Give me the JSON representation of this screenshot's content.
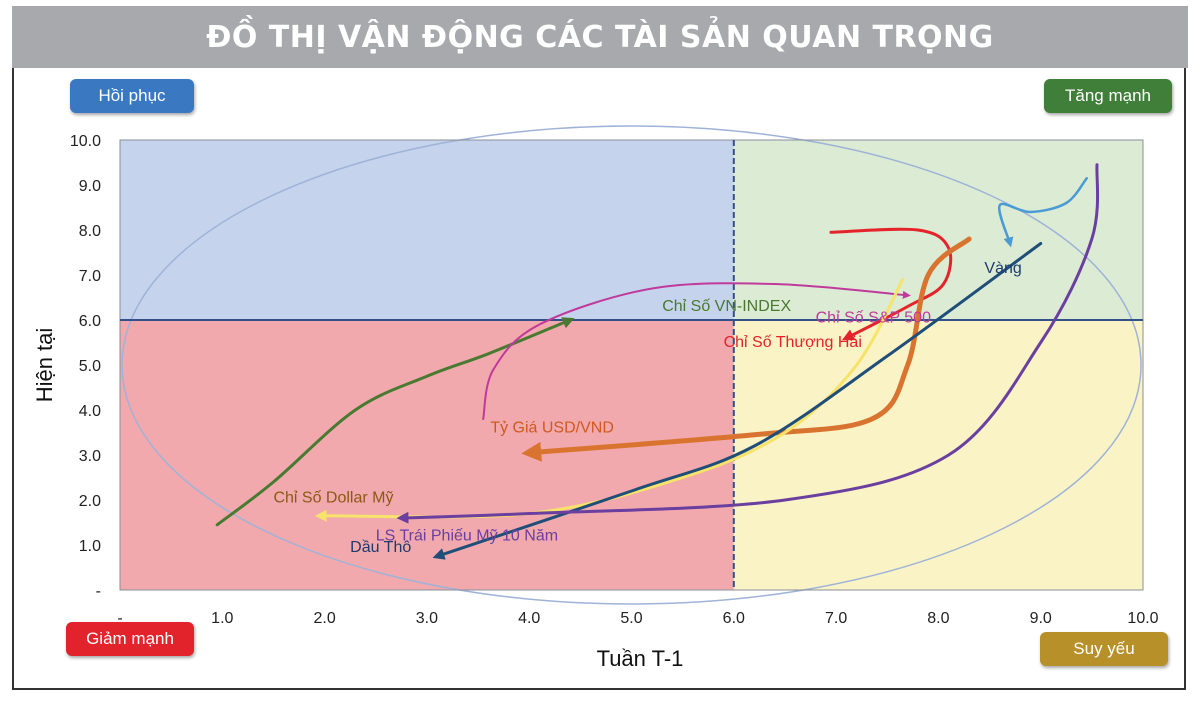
{
  "header": {
    "title": "ĐỒ THỊ VẬN ĐỘNG CÁC TÀI SẢN QUAN TRỌNG"
  },
  "quadrants": {
    "top_left": {
      "label": "Hồi phục",
      "color": "#3a78c2"
    },
    "top_right": {
      "label": "Tăng mạnh",
      "color": "#3f7f3a"
    },
    "bottom_left": {
      "label": "Giảm mạnh",
      "color": "#e3232b"
    },
    "bottom_right": {
      "label": "Suy yếu",
      "color": "#b8902a"
    }
  },
  "chart_data": {
    "type": "scatter",
    "xlabel": "Tuần T-1",
    "ylabel": "Hiện tại",
    "xlim": [
      0,
      10
    ],
    "ylim": [
      0,
      10
    ],
    "x_ticks": [
      "-",
      "1.0",
      "2.0",
      "3.0",
      "4.0",
      "5.0",
      "6.0",
      "7.0",
      "8.0",
      "9.0",
      "10.0"
    ],
    "y_ticks": [
      "-",
      "1.0",
      "2.0",
      "3.0",
      "4.0",
      "5.0",
      "6.0",
      "7.0",
      "8.0",
      "9.0",
      "10.0"
    ],
    "divider": {
      "x": 6,
      "y": 6
    },
    "quadrant_fills": {
      "top_left": "#c5d4ec",
      "top_right": "#dcebd3",
      "bottom_left": "#f1a9ad",
      "bottom_right": "#faf3c6"
    },
    "series": [
      {
        "name": "Chỉ Số VN-INDEX",
        "color": "#4a7a32",
        "width": 3,
        "label_color": "#4a7a32",
        "label_at": [
          5.3,
          6.2
        ],
        "points": [
          [
            0.95,
            1.45
          ],
          [
            1.5,
            2.4
          ],
          [
            2.3,
            4.0
          ],
          [
            3.0,
            4.75
          ],
          [
            3.6,
            5.25
          ],
          [
            4.4,
            6.0
          ]
        ]
      },
      {
        "name": "Chỉ Số S&P 500",
        "color": "#c03a9c",
        "width": 2,
        "label_color": "#c03a9c",
        "label_at": [
          6.8,
          5.95
        ],
        "points": [
          [
            3.55,
            3.8
          ],
          [
            3.65,
            4.9
          ],
          [
            4.1,
            5.9
          ],
          [
            5.2,
            6.7
          ],
          [
            6.4,
            6.8
          ],
          [
            7.7,
            6.55
          ]
        ]
      },
      {
        "name": "Chỉ Số Thượng Hải",
        "color": "#e5232b",
        "width": 3,
        "label_color": "#e5232b",
        "label_at": [
          5.9,
          5.4
        ],
        "points": [
          [
            6.95,
            7.95
          ],
          [
            7.8,
            8.0
          ],
          [
            8.1,
            7.6
          ],
          [
            8.05,
            6.8
          ],
          [
            7.7,
            6.3
          ],
          [
            7.1,
            5.6
          ]
        ]
      },
      {
        "name": "Vàng",
        "color": "#4a9ad5",
        "width": 2.5,
        "label_color": "#1f3b6b",
        "label_at": [
          8.45,
          7.05
        ],
        "points": [
          [
            9.45,
            9.15
          ],
          [
            9.25,
            8.6
          ],
          [
            8.9,
            8.4
          ],
          [
            8.6,
            8.55
          ],
          [
            8.7,
            7.7
          ]
        ]
      },
      {
        "name": "Tỷ Giá USD/VND",
        "color": "#d97430",
        "width": 5,
        "label_color": "#cf5a1f",
        "label_at": [
          3.62,
          3.5
        ],
        "points": [
          [
            8.3,
            7.8
          ],
          [
            7.9,
            7.0
          ],
          [
            7.7,
            5.0
          ],
          [
            7.35,
            3.8
          ],
          [
            6.2,
            3.45
          ],
          [
            4.0,
            3.05
          ]
        ]
      },
      {
        "name": "Chỉ Số Dollar Mỹ",
        "color": "#f7e36a",
        "width": 3,
        "label_color": "#8a5a14",
        "label_at": [
          1.5,
          1.95
        ],
        "points": [
          [
            7.65,
            6.9
          ],
          [
            7.2,
            5.0
          ],
          [
            6.5,
            3.5
          ],
          [
            5.5,
            2.5
          ],
          [
            4.0,
            1.7
          ],
          [
            1.95,
            1.65
          ]
        ]
      },
      {
        "name": "Dầu Thô",
        "color": "#1f4e79",
        "width": 3,
        "label_color": "#1f3b6b",
        "label_at": [
          2.25,
          0.85
        ],
        "points": [
          [
            9.0,
            7.7
          ],
          [
            7.5,
            5.2
          ],
          [
            6.2,
            3.2
          ],
          [
            5.0,
            2.2
          ],
          [
            3.1,
            0.75
          ]
        ]
      },
      {
        "name": "LS Trái Phiếu Mỹ 10 Năm",
        "color": "#6a3fa0",
        "width": 3,
        "label_color": "#6a3fa0",
        "label_at": [
          2.5,
          1.1
        ],
        "points": [
          [
            9.55,
            9.45
          ],
          [
            9.5,
            7.8
          ],
          [
            9.0,
            5.5
          ],
          [
            8.1,
            3.0
          ],
          [
            6.5,
            2.0
          ],
          [
            4.0,
            1.7
          ],
          [
            2.75,
            1.6
          ]
        ]
      }
    ]
  }
}
